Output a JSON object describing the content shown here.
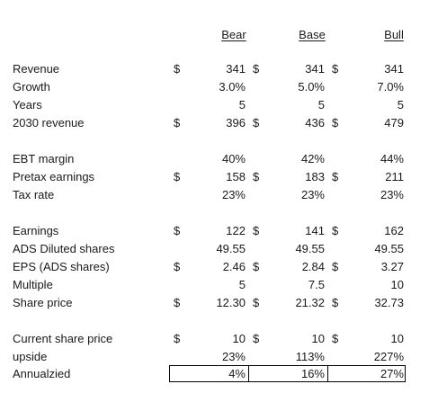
{
  "headers": {
    "bear": "Bear",
    "base": "Base",
    "bull": "Bull"
  },
  "rows": [
    {
      "label": "Revenue",
      "d1": "$",
      "v1": "341",
      "d2": "$",
      "v2": "341",
      "d3": "$",
      "v3": "341"
    },
    {
      "label": "Growth",
      "d1": "",
      "v1": "3.0%",
      "d2": "",
      "v2": "5.0%",
      "d3": "",
      "v3": "7.0%"
    },
    {
      "label": "Years",
      "d1": "",
      "v1": "5",
      "d2": "",
      "v2": "5",
      "d3": "",
      "v3": "5"
    },
    {
      "label": "2030 revenue",
      "d1": "$",
      "v1": "396",
      "d2": "$",
      "v2": "436",
      "d3": "$",
      "v3": "479"
    },
    {
      "label": "EBT margin",
      "d1": "",
      "v1": "40%",
      "d2": "",
      "v2": "42%",
      "d3": "",
      "v3": "44%"
    },
    {
      "label": "Pretax earnings",
      "d1": "$",
      "v1": "158",
      "d2": "$",
      "v2": "183",
      "d3": "$",
      "v3": "211"
    },
    {
      "label": "Tax rate",
      "d1": "",
      "v1": "23%",
      "d2": "",
      "v2": "23%",
      "d3": "",
      "v3": "23%"
    },
    {
      "label": "Earnings",
      "d1": "$",
      "v1": "122",
      "d2": "$",
      "v2": "141",
      "d3": "$",
      "v3": "162"
    },
    {
      "label": "ADS Diluted shares",
      "d1": "",
      "v1": "49.55",
      "d2": "",
      "v2": "49.55",
      "d3": "",
      "v3": "49.55"
    },
    {
      "label": "EPS (ADS shares)",
      "d1": "$",
      "v1": "2.46",
      "d2": "$",
      "v2": "2.84",
      "d3": "$",
      "v3": "3.27"
    },
    {
      "label": "Multiple",
      "d1": "",
      "v1": "5",
      "d2": "",
      "v2": "7.5",
      "d3": "",
      "v3": "10"
    },
    {
      "label": "Share price",
      "d1": "$",
      "v1": "12.30",
      "d2": "$",
      "v2": "21.32",
      "d3": "$",
      "v3": "32.73"
    },
    {
      "label": "Current share price",
      "d1": "$",
      "v1": "10",
      "d2": "$",
      "v2": "10",
      "d3": "$",
      "v3": "10"
    },
    {
      "label": "upside",
      "d1": "",
      "v1": "23%",
      "d2": "",
      "v2": "113%",
      "d3": "",
      "v3": "227%"
    },
    {
      "label": "Annualzied",
      "d1": "",
      "v1": "4%",
      "d2": "",
      "v2": "16%",
      "d3": "",
      "v3": "27%"
    }
  ]
}
